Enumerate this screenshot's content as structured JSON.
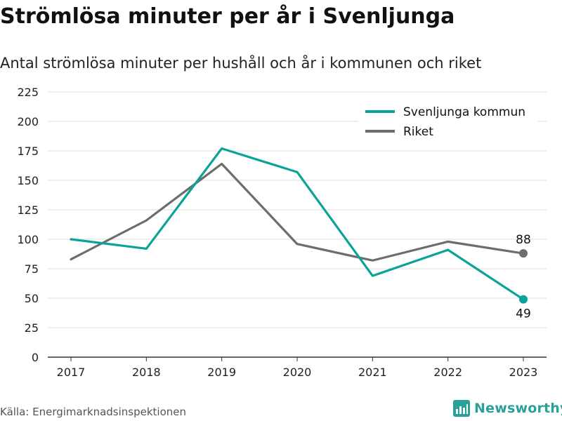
{
  "title": "Strömlösa minuter per år i Svenljunga",
  "subtitle": "Antal strömlösa minuter per hushåll och år i kommunen och riket",
  "source": "Källa: Energimarknadsinspektionen",
  "brand": {
    "name": "Newsworthy",
    "icon": "bar-chart-icon",
    "color": "#2aa198"
  },
  "chart_data": {
    "type": "line",
    "x": [
      "2017",
      "2018",
      "2019",
      "2020",
      "2021",
      "2022",
      "2023"
    ],
    "y_ticks": [
      0,
      25,
      50,
      75,
      100,
      125,
      150,
      175,
      200,
      225
    ],
    "ylim": [
      0,
      225
    ],
    "grid": true,
    "legend_position": "top-right",
    "series": [
      {
        "name": "Svenljunga kommun",
        "color": "#0aa39a",
        "values": [
          100,
          92,
          177,
          157,
          69,
          91,
          49
        ],
        "end_label": "49"
      },
      {
        "name": "Riket",
        "color": "#6d6d6d",
        "values": [
          83,
          116,
          164,
          96,
          82,
          98,
          88
        ],
        "end_label": "88"
      }
    ]
  }
}
